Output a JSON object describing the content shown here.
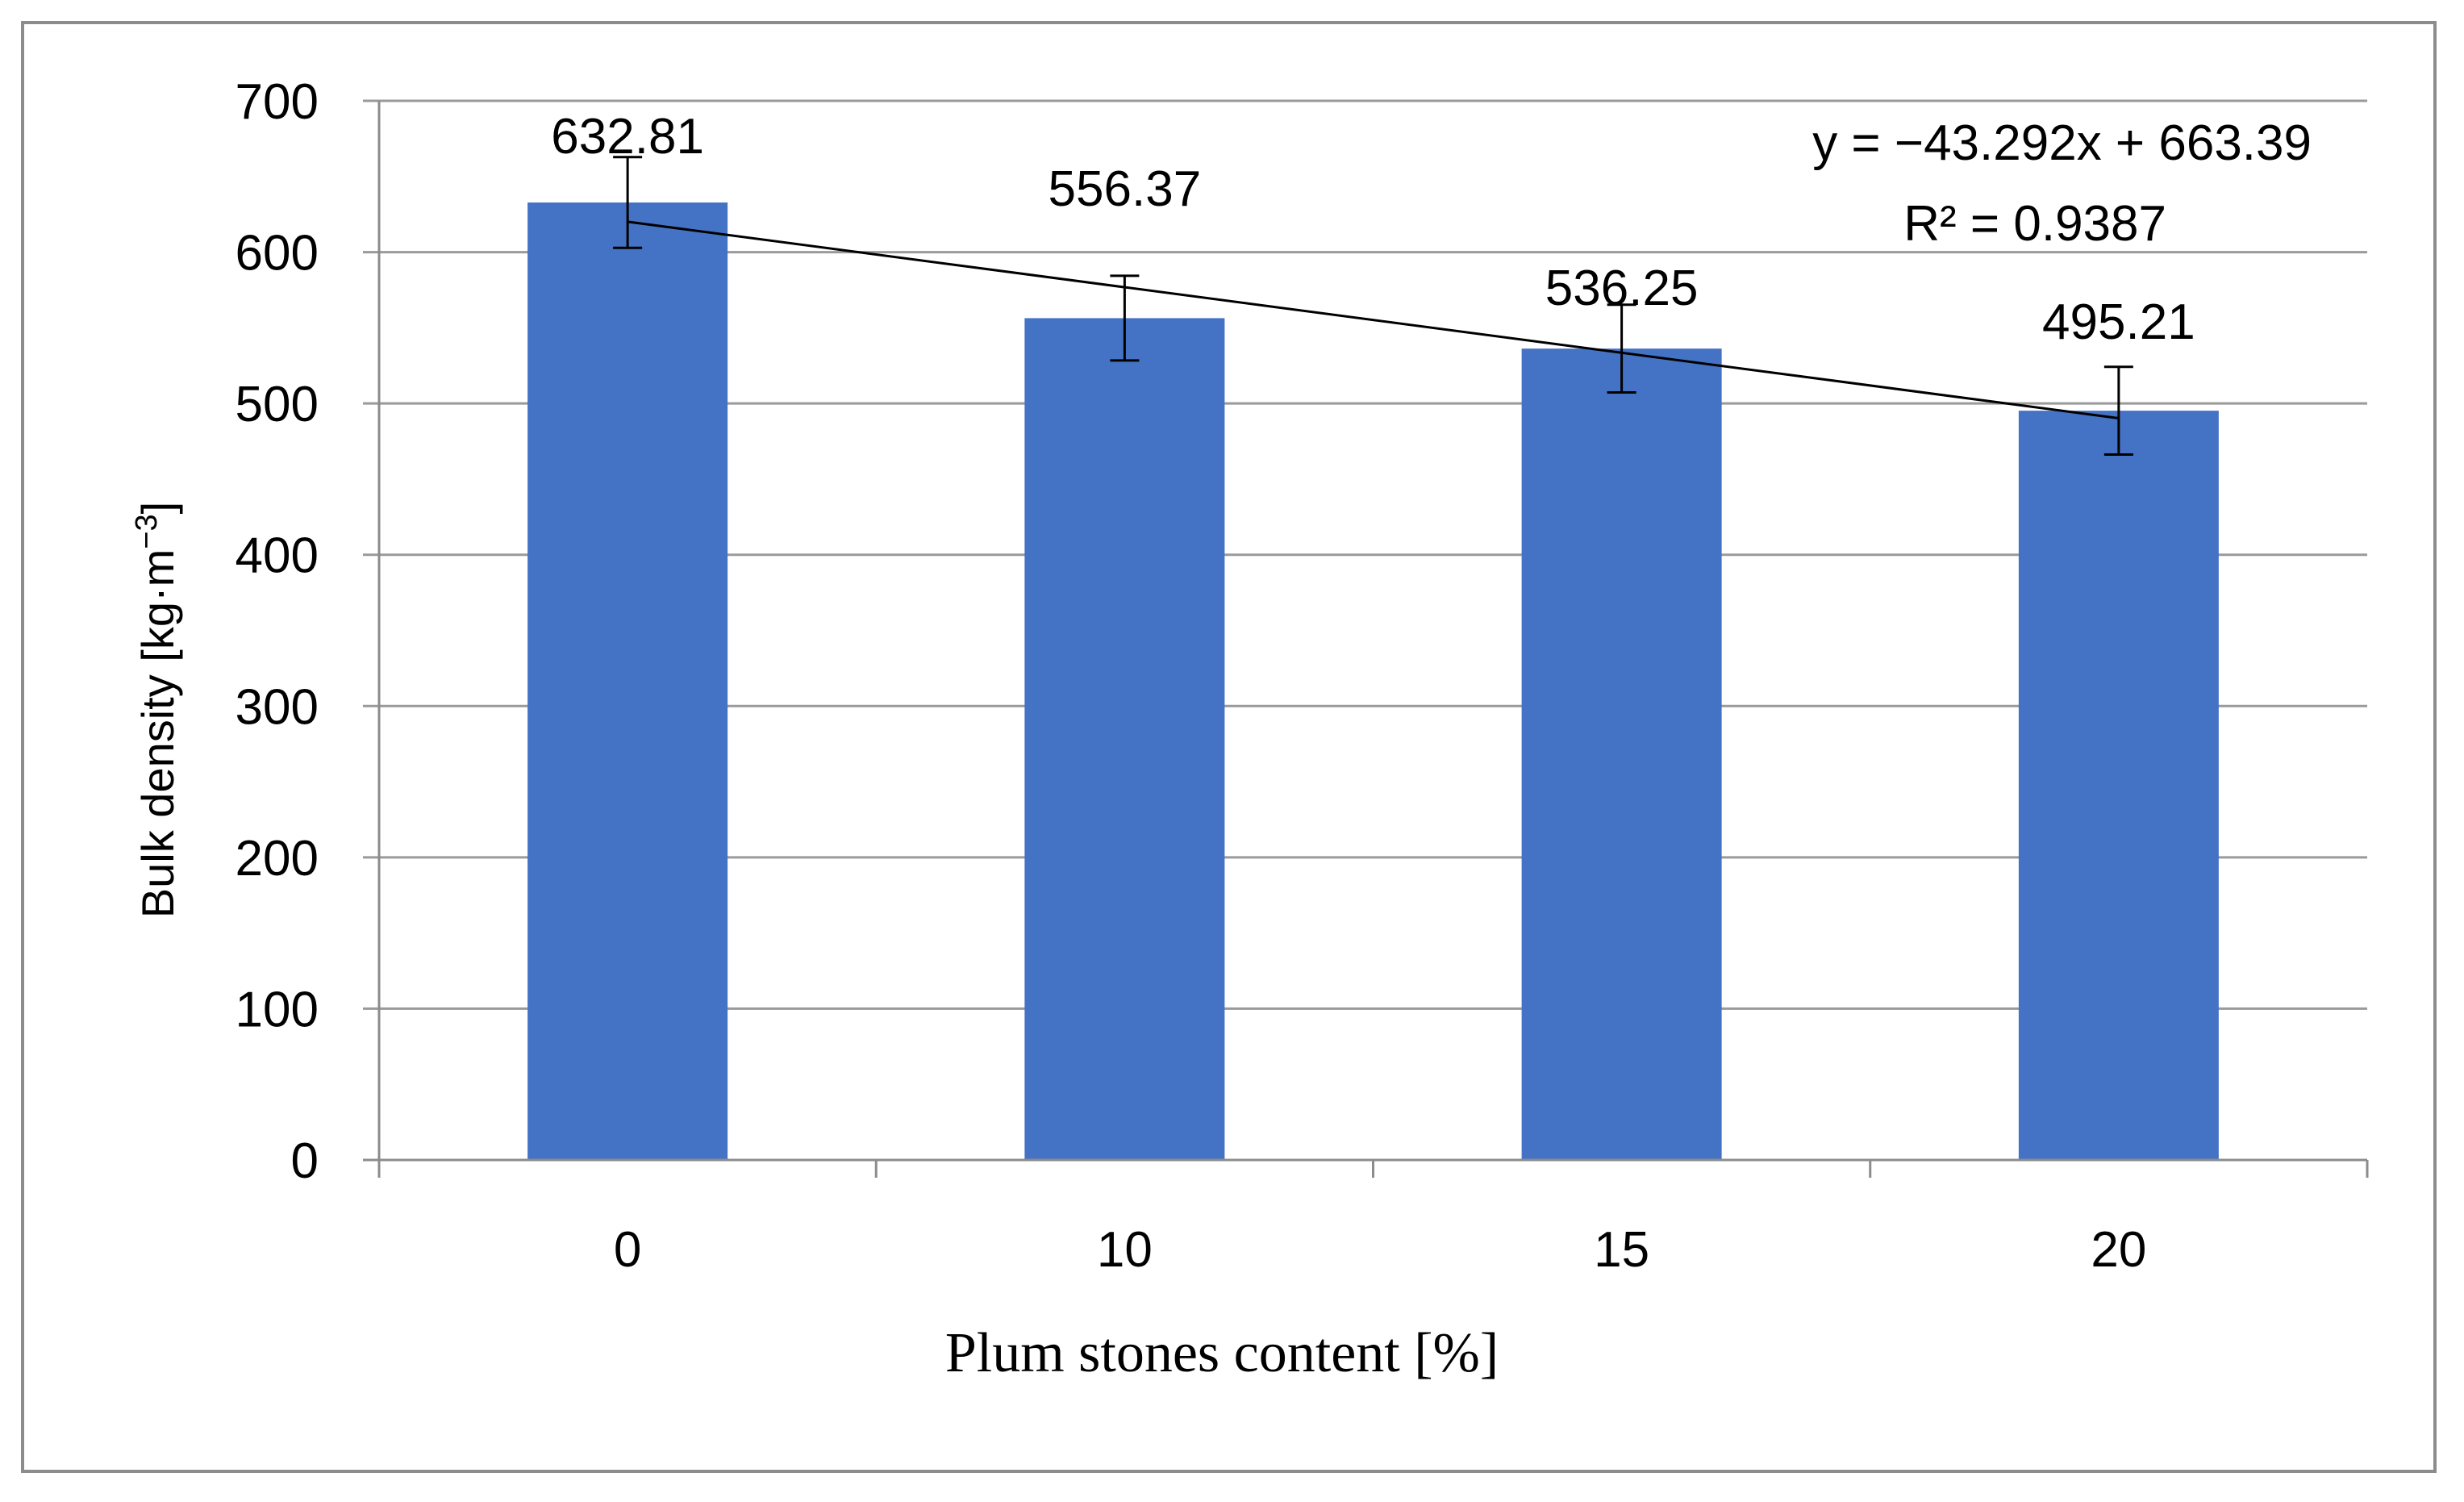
{
  "chart_data": {
    "type": "bar",
    "categories": [
      "0",
      "10",
      "15",
      "20"
    ],
    "values": [
      632.81,
      556.37,
      536.25,
      495.21
    ],
    "data_labels": [
      "632.81",
      "556.37",
      "536.25",
      "495.21"
    ],
    "error_bars": [
      30,
      28,
      29,
      29
    ],
    "xlabel": "Plum stones content [%]",
    "ylabel": "Bulk density [kg·m",
    "ylabel_superscript": "−3",
    "ylabel_suffix": "]",
    "ylim": [
      0,
      700
    ],
    "yticks": [
      "0",
      "100",
      "200",
      "300",
      "400",
      "500",
      "600",
      "700"
    ],
    "grid": true,
    "bar_color": "#4472c4",
    "trendline": {
      "type": "linear",
      "slope": -43.292,
      "intercept": 663.39,
      "equation": "y = −43.292x + 663.39",
      "r_squared": "R² = 0.9387"
    }
  }
}
